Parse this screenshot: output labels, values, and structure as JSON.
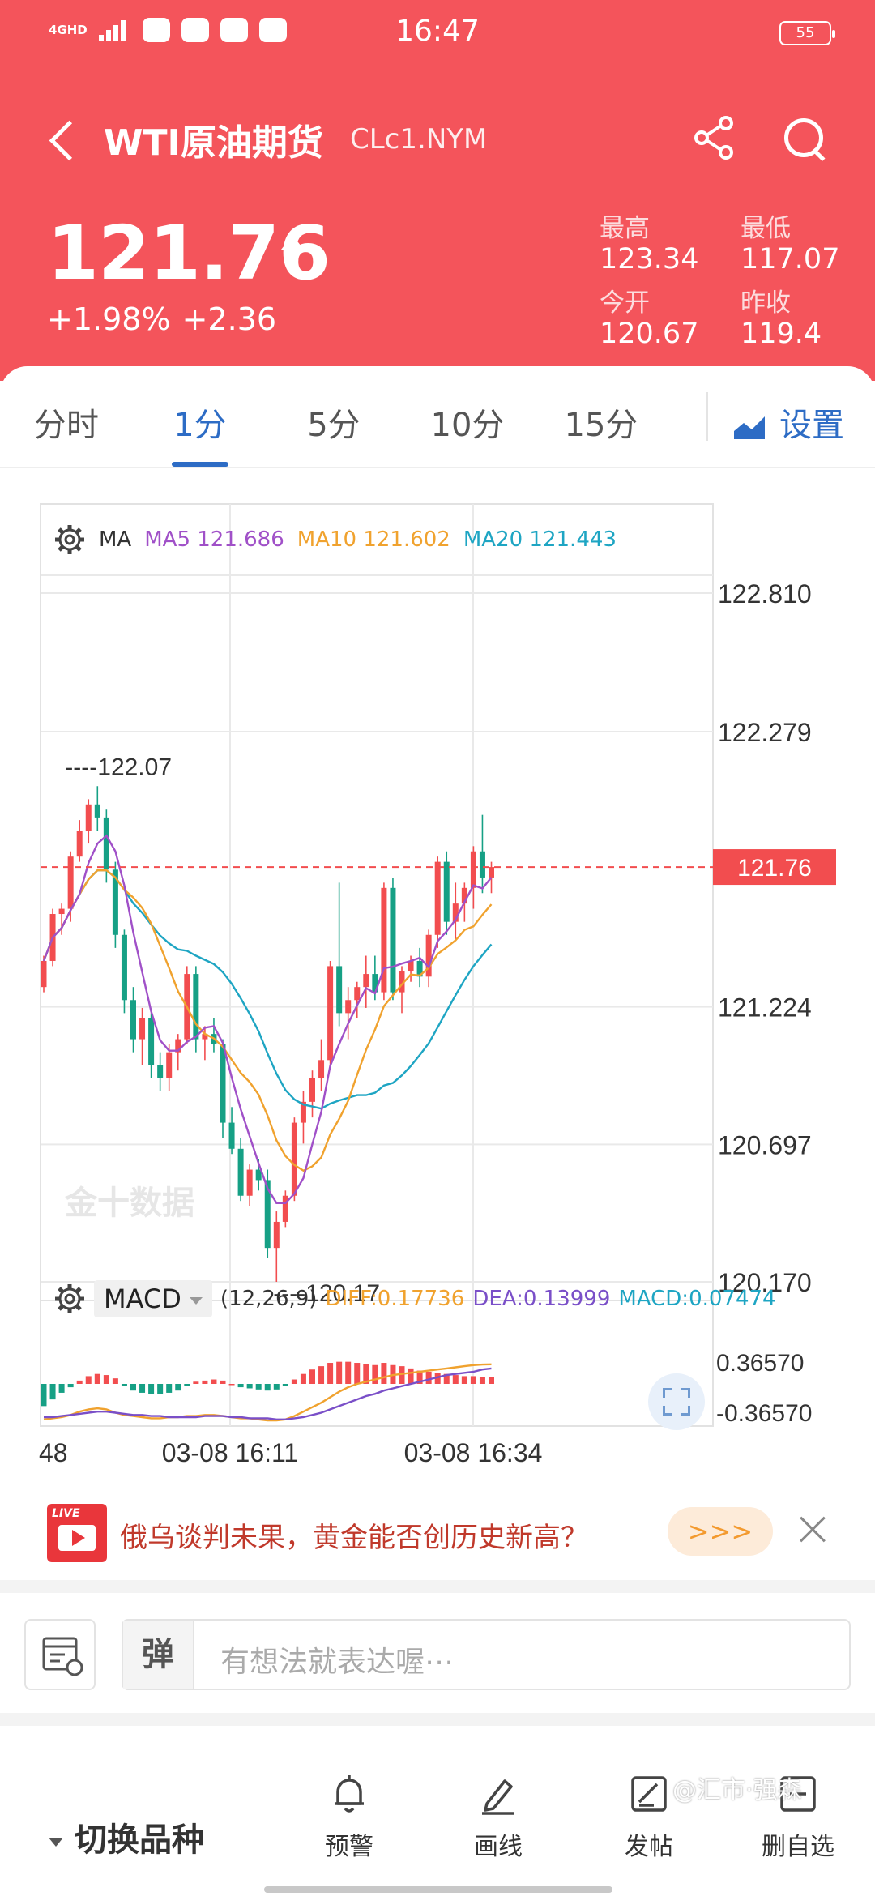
{
  "status_bar": {
    "network": "4GHD",
    "time": "16:47",
    "battery": "55"
  },
  "nav": {
    "title": "WTI原油期货",
    "code": "CLc1.NYM"
  },
  "quote": {
    "price": "121.76",
    "change_pct": "+1.98%",
    "change_abs": "+2.36",
    "high_label": "最高",
    "high": "123.34",
    "low_label": "最低",
    "low": "117.07",
    "open_label": "今开",
    "open": "120.67",
    "prev_close_label": "昨收",
    "prev_close": "119.4"
  },
  "tabs": [
    {
      "label": "分时",
      "active": false
    },
    {
      "label": "1分",
      "active": true
    },
    {
      "label": "5分",
      "active": false
    },
    {
      "label": "10分",
      "active": false
    },
    {
      "label": "15分",
      "active": false
    }
  ],
  "settings_label": "设置",
  "chart_data": {
    "type": "candlestick",
    "ma_legend": {
      "label": "MA",
      "ma5": "MA5 121.686",
      "ma10": "MA10 121.602",
      "ma20": "MA20 121.443"
    },
    "y_ticks": [
      "122.810",
      "122.279",
      "121.224",
      "120.697",
      "120.170"
    ],
    "ylim": [
      120.17,
      122.81
    ],
    "current_price_label": "121.76",
    "current_price": 121.76,
    "annotation_high": "122.07",
    "annotation_low": "120.17",
    "watermark": "金十数据",
    "x_labels": [
      "48",
      "03-08 16:11",
      "03-08 16:34"
    ],
    "candles": [
      [
        121.3,
        121.42,
        121.28,
        121.4
      ],
      [
        121.4,
        121.6,
        121.38,
        121.58
      ],
      [
        121.58,
        121.62,
        121.5,
        121.6
      ],
      [
        121.6,
        121.82,
        121.55,
        121.8
      ],
      [
        121.8,
        121.94,
        121.78,
        121.9
      ],
      [
        121.9,
        122.02,
        121.85,
        122.0
      ],
      [
        122.0,
        122.07,
        121.9,
        121.95
      ],
      [
        121.95,
        121.98,
        121.7,
        121.75
      ],
      [
        121.75,
        121.78,
        121.45,
        121.5
      ],
      [
        121.5,
        121.52,
        121.2,
        121.25
      ],
      [
        121.25,
        121.3,
        121.05,
        121.1
      ],
      [
        121.1,
        121.22,
        121.0,
        121.18
      ],
      [
        121.18,
        121.2,
        120.95,
        121.0
      ],
      [
        121.0,
        121.05,
        120.9,
        120.95
      ],
      [
        120.95,
        121.08,
        120.9,
        121.05
      ],
      [
        121.05,
        121.12,
        120.98,
        121.1
      ],
      [
        121.1,
        121.38,
        121.08,
        121.35
      ],
      [
        121.35,
        121.38,
        121.05,
        121.1
      ],
      [
        121.1,
        121.15,
        121.02,
        121.12
      ],
      [
        121.12,
        121.18,
        121.05,
        121.08
      ],
      [
        121.08,
        121.1,
        120.72,
        120.78
      ],
      [
        120.78,
        120.84,
        120.66,
        120.68
      ],
      [
        120.68,
        120.72,
        120.48,
        120.5
      ],
      [
        120.5,
        120.62,
        120.46,
        120.6
      ],
      [
        120.6,
        120.64,
        120.52,
        120.56
      ],
      [
        120.56,
        120.6,
        120.26,
        120.3
      ],
      [
        120.3,
        120.44,
        120.17,
        120.4
      ],
      [
        120.4,
        120.52,
        120.38,
        120.5
      ],
      [
        120.5,
        120.8,
        120.48,
        120.78
      ],
      [
        120.78,
        120.9,
        120.7,
        120.86
      ],
      [
        120.86,
        120.98,
        120.8,
        120.95
      ],
      [
        120.95,
        121.1,
        120.9,
        121.02
      ],
      [
        121.02,
        121.4,
        121.0,
        121.38
      ],
      [
        121.38,
        121.7,
        121.15,
        121.2
      ],
      [
        121.2,
        121.3,
        121.1,
        121.25
      ],
      [
        121.25,
        121.32,
        121.18,
        121.3
      ],
      [
        121.3,
        121.42,
        121.22,
        121.35
      ],
      [
        121.35,
        121.42,
        121.25,
        121.28
      ],
      [
        121.28,
        121.7,
        121.25,
        121.68
      ],
      [
        121.68,
        121.72,
        121.25,
        121.28
      ],
      [
        121.28,
        121.38,
        121.2,
        121.36
      ],
      [
        121.36,
        121.42,
        121.32,
        121.4
      ],
      [
        121.4,
        121.45,
        121.3,
        121.34
      ],
      [
        121.34,
        121.52,
        121.3,
        121.5
      ],
      [
        121.5,
        121.8,
        121.45,
        121.78
      ],
      [
        121.78,
        121.82,
        121.5,
        121.55
      ],
      [
        121.55,
        121.7,
        121.48,
        121.62
      ],
      [
        121.62,
        121.7,
        121.55,
        121.68
      ],
      [
        121.68,
        121.84,
        121.6,
        121.82
      ],
      [
        121.82,
        121.96,
        121.66,
        121.72
      ],
      [
        121.72,
        121.78,
        121.66,
        121.76
      ]
    ],
    "macd": {
      "label": "MACD",
      "params": "(12,26,9)",
      "diff": "DIFF:0.17736",
      "dea": "DEA:0.13999",
      "macd": "MACD:0.07474",
      "y_ticks": [
        "0.36570",
        "-0.36570"
      ],
      "ylim": [
        -0.3657,
        0.3657
      ],
      "hist": [
        -0.2,
        -0.14,
        -0.08,
        -0.03,
        0.03,
        0.07,
        0.09,
        0.08,
        0.05,
        -0.02,
        -0.06,
        -0.08,
        -0.09,
        -0.09,
        -0.08,
        -0.06,
        -0.02,
        0.02,
        0.03,
        0.04,
        0.03,
        0.0,
        -0.03,
        -0.04,
        -0.05,
        -0.06,
        -0.05,
        -0.02,
        0.04,
        0.09,
        0.13,
        0.16,
        0.19,
        0.2,
        0.2,
        0.19,
        0.18,
        0.17,
        0.19,
        0.17,
        0.16,
        0.14,
        0.12,
        0.11,
        0.1,
        0.09,
        0.08,
        0.07,
        0.07,
        0.06,
        0.06
      ],
      "diff_series": [
        -0.32,
        -0.31,
        -0.3,
        -0.28,
        -0.25,
        -0.23,
        -0.22,
        -0.23,
        -0.26,
        -0.28,
        -0.29,
        -0.3,
        -0.31,
        -0.31,
        -0.3,
        -0.3,
        -0.29,
        -0.29,
        -0.28,
        -0.28,
        -0.29,
        -0.3,
        -0.31,
        -0.31,
        -0.32,
        -0.33,
        -0.33,
        -0.32,
        -0.29,
        -0.25,
        -0.21,
        -0.17,
        -0.12,
        -0.07,
        -0.03,
        0.0,
        0.02,
        0.04,
        0.06,
        0.08,
        0.09,
        0.1,
        0.11,
        0.12,
        0.13,
        0.14,
        0.15,
        0.16,
        0.17,
        0.175,
        0.177
      ],
      "dea_series": [
        -0.3,
        -0.3,
        -0.29,
        -0.28,
        -0.27,
        -0.26,
        -0.25,
        -0.25,
        -0.26,
        -0.27,
        -0.28,
        -0.28,
        -0.29,
        -0.29,
        -0.3,
        -0.3,
        -0.3,
        -0.3,
        -0.29,
        -0.29,
        -0.29,
        -0.3,
        -0.3,
        -0.31,
        -0.31,
        -0.31,
        -0.32,
        -0.32,
        -0.31,
        -0.3,
        -0.28,
        -0.26,
        -0.23,
        -0.2,
        -0.17,
        -0.14,
        -0.11,
        -0.09,
        -0.06,
        -0.04,
        -0.02,
        0.0,
        0.02,
        0.04,
        0.06,
        0.08,
        0.09,
        0.1,
        0.11,
        0.13,
        0.14
      ]
    }
  },
  "news": {
    "live_label": "LIVE",
    "text": "俄乌谈判未果，黄金能否创历史新高？",
    "more": ">>>"
  },
  "comment": {
    "avatar": "弹",
    "placeholder": "有想法就表达喔⋯"
  },
  "bottom": {
    "switch": "切换品种",
    "alert": "预警",
    "draw": "画线",
    "post": "发帖",
    "watchlist": "删自选",
    "watermark": "@汇市·强森"
  },
  "colors": {
    "header": "#f4545b",
    "up": "#f24d4f",
    "down": "#16a085",
    "ma5": "#a050c8",
    "ma10": "#f0a22e",
    "ma20": "#1ea5c3",
    "accent": "#2d6cc5"
  }
}
